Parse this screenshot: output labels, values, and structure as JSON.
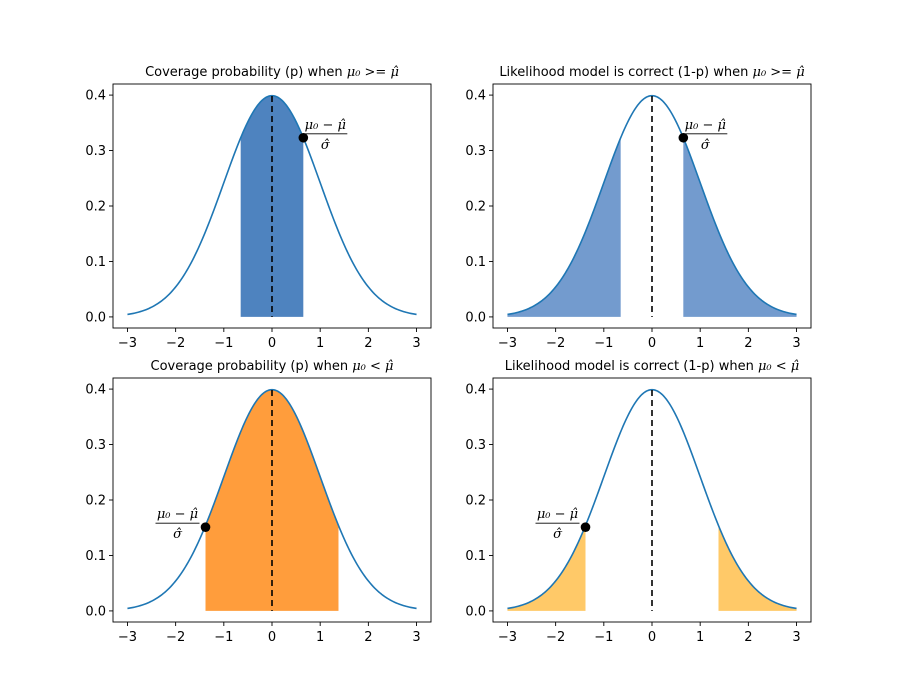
{
  "chart_data": [
    {
      "type": "area",
      "title": {
        "prefix": "Coverage probability (p) when ",
        "math": "μ₀ >= μ̂"
      },
      "curve": {
        "function": "standard normal pdf",
        "x_range": [
          -3,
          3
        ]
      },
      "shaded_regions": [
        {
          "x_from": -0.65,
          "x_to": 0.65
        }
      ],
      "fill_color": "#3b75b8",
      "fill_opacity": 0.9,
      "line_color": "#1f77b4",
      "dashed_line_x": 0,
      "point": {
        "x": 0.65,
        "y": 0.323
      },
      "annotation": {
        "numerator": "μ₀ − μ̂",
        "denominator": "σ̂",
        "side": "right"
      },
      "xticks": [
        -3,
        -2,
        -1,
        0,
        1,
        2,
        3
      ],
      "xtick_labels": [
        "−3",
        "−2",
        "−1",
        "0",
        "1",
        "2",
        "3"
      ],
      "yticks": [
        0.0,
        0.1,
        0.2,
        0.3,
        0.4
      ],
      "ytick_labels": [
        "0.0",
        "0.1",
        "0.2",
        "0.3",
        "0.4"
      ],
      "xlim": [
        -3.3,
        3.3
      ],
      "ylim": [
        -0.02,
        0.42
      ]
    },
    {
      "type": "area",
      "title": {
        "prefix": "Likelihood model is correct (1-p) when ",
        "math": "μ₀ >= μ̂"
      },
      "curve": {
        "function": "standard normal pdf",
        "x_range": [
          -3,
          3
        ]
      },
      "shaded_regions": [
        {
          "x_from": -3,
          "x_to": -0.65
        },
        {
          "x_from": 0.65,
          "x_to": 3
        }
      ],
      "fill_color": "#5a8ac6",
      "fill_opacity": 0.85,
      "line_color": "#1f77b4",
      "dashed_line_x": 0,
      "point": {
        "x": 0.65,
        "y": 0.323
      },
      "annotation": {
        "numerator": "μ₀ − μ̂",
        "denominator": "σ̂",
        "side": "right"
      },
      "xticks": [
        -3,
        -2,
        -1,
        0,
        1,
        2,
        3
      ],
      "xtick_labels": [
        "−3",
        "−2",
        "−1",
        "0",
        "1",
        "2",
        "3"
      ],
      "yticks": [
        0.0,
        0.1,
        0.2,
        0.3,
        0.4
      ],
      "ytick_labels": [
        "0.0",
        "0.1",
        "0.2",
        "0.3",
        "0.4"
      ],
      "xlim": [
        -3.3,
        3.3
      ],
      "ylim": [
        -0.02,
        0.42
      ]
    },
    {
      "type": "area",
      "title": {
        "prefix": "Coverage probability (p) when ",
        "math": "μ₀ < μ̂"
      },
      "curve": {
        "function": "standard normal pdf",
        "x_range": [
          -3,
          3
        ]
      },
      "shaded_regions": [
        {
          "x_from": -1.38,
          "x_to": 1.38
        }
      ],
      "fill_color": "#ff8c1a",
      "fill_opacity": 0.85,
      "line_color": "#1f77b4",
      "dashed_line_x": 0,
      "point": {
        "x": -1.38,
        "y": 0.151
      },
      "annotation": {
        "numerator": "μ₀ − μ̂",
        "denominator": "σ̂",
        "side": "left"
      },
      "xticks": [
        -3,
        -2,
        -1,
        0,
        1,
        2,
        3
      ],
      "xtick_labels": [
        "−3",
        "−2",
        "−1",
        "0",
        "1",
        "2",
        "3"
      ],
      "yticks": [
        0.0,
        0.1,
        0.2,
        0.3,
        0.4
      ],
      "ytick_labels": [
        "0.0",
        "0.1",
        "0.2",
        "0.3",
        "0.4"
      ],
      "xlim": [
        -3.3,
        3.3
      ],
      "ylim": [
        -0.02,
        0.42
      ]
    },
    {
      "type": "area",
      "title": {
        "prefix": "Likelihood model is correct (1-p) when ",
        "math": "μ₀ < μ̂"
      },
      "curve": {
        "function": "standard normal pdf",
        "x_range": [
          -3,
          3
        ]
      },
      "shaded_regions": [
        {
          "x_from": -3,
          "x_to": -1.38
        },
        {
          "x_from": 1.38,
          "x_to": 3
        }
      ],
      "fill_color": "#ffc04d",
      "fill_opacity": 0.85,
      "line_color": "#1f77b4",
      "dashed_line_x": 0,
      "point": {
        "x": -1.38,
        "y": 0.151
      },
      "annotation": {
        "numerator": "μ₀ − μ̂",
        "denominator": "σ̂",
        "side": "left"
      },
      "xticks": [
        -3,
        -2,
        -1,
        0,
        1,
        2,
        3
      ],
      "xtick_labels": [
        "−3",
        "−2",
        "−1",
        "0",
        "1",
        "2",
        "3"
      ],
      "yticks": [
        0.0,
        0.1,
        0.2,
        0.3,
        0.4
      ],
      "ytick_labels": [
        "0.0",
        "0.1",
        "0.2",
        "0.3",
        "0.4"
      ],
      "xlim": [
        -3.3,
        3.3
      ],
      "ylim": [
        -0.02,
        0.42
      ]
    }
  ]
}
